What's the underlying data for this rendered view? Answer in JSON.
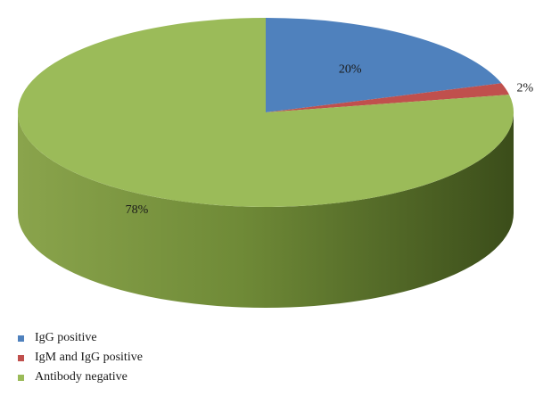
{
  "chart_data": {
    "type": "pie",
    "three_d": true,
    "title": "",
    "slices": [
      {
        "name": "IgG positive",
        "value": 20,
        "label": "20%",
        "color": "#4F81BD"
      },
      {
        "name": "IgM and IgG positive",
        "value": 2,
        "label": "2%",
        "color": "#C0504D"
      },
      {
        "name": "Antibody negative",
        "value": 78,
        "label": "78%",
        "color": "#9BBB59"
      }
    ],
    "legend_position": "bottom-left"
  }
}
